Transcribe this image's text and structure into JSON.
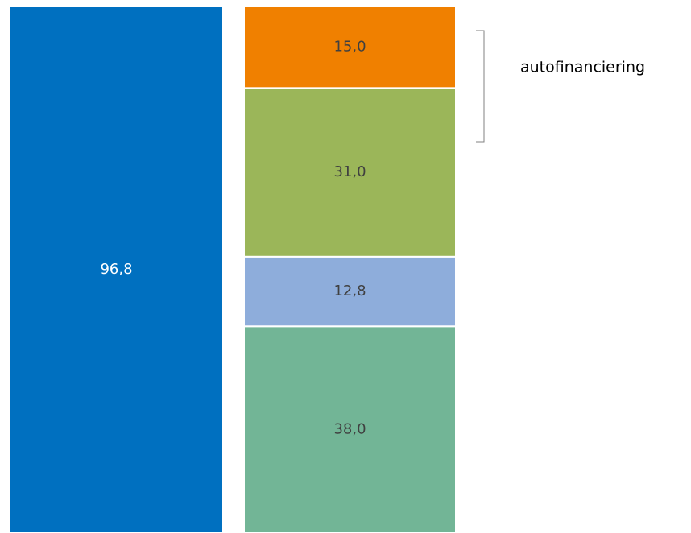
{
  "chart_data": {
    "type": "bar",
    "stacked": true,
    "categories": [
      null,
      null
    ],
    "series": [
      {
        "color": "#0070c0",
        "label_color": "#ffffff",
        "values": [
          96.8,
          null
        ],
        "value_labels": [
          "96,8",
          null
        ]
      },
      {
        "color": "#72b596",
        "label_color": "#404040",
        "values": [
          null,
          38.0
        ],
        "value_labels": [
          null,
          "38,0"
        ]
      },
      {
        "color": "#8eaddb",
        "label_color": "#404040",
        "values": [
          null,
          12.8
        ],
        "value_labels": [
          null,
          "12,8"
        ]
      },
      {
        "color": "#9bb659",
        "label_color": "#404040",
        "values": [
          null,
          31.0
        ],
        "value_labels": [
          null,
          "31,0"
        ]
      },
      {
        "color": "#f08000",
        "label_color": "#404040",
        "values": [
          null,
          15.0
        ],
        "value_labels": [
          null,
          "15,0"
        ]
      }
    ],
    "annotation": "autofinanciering"
  }
}
